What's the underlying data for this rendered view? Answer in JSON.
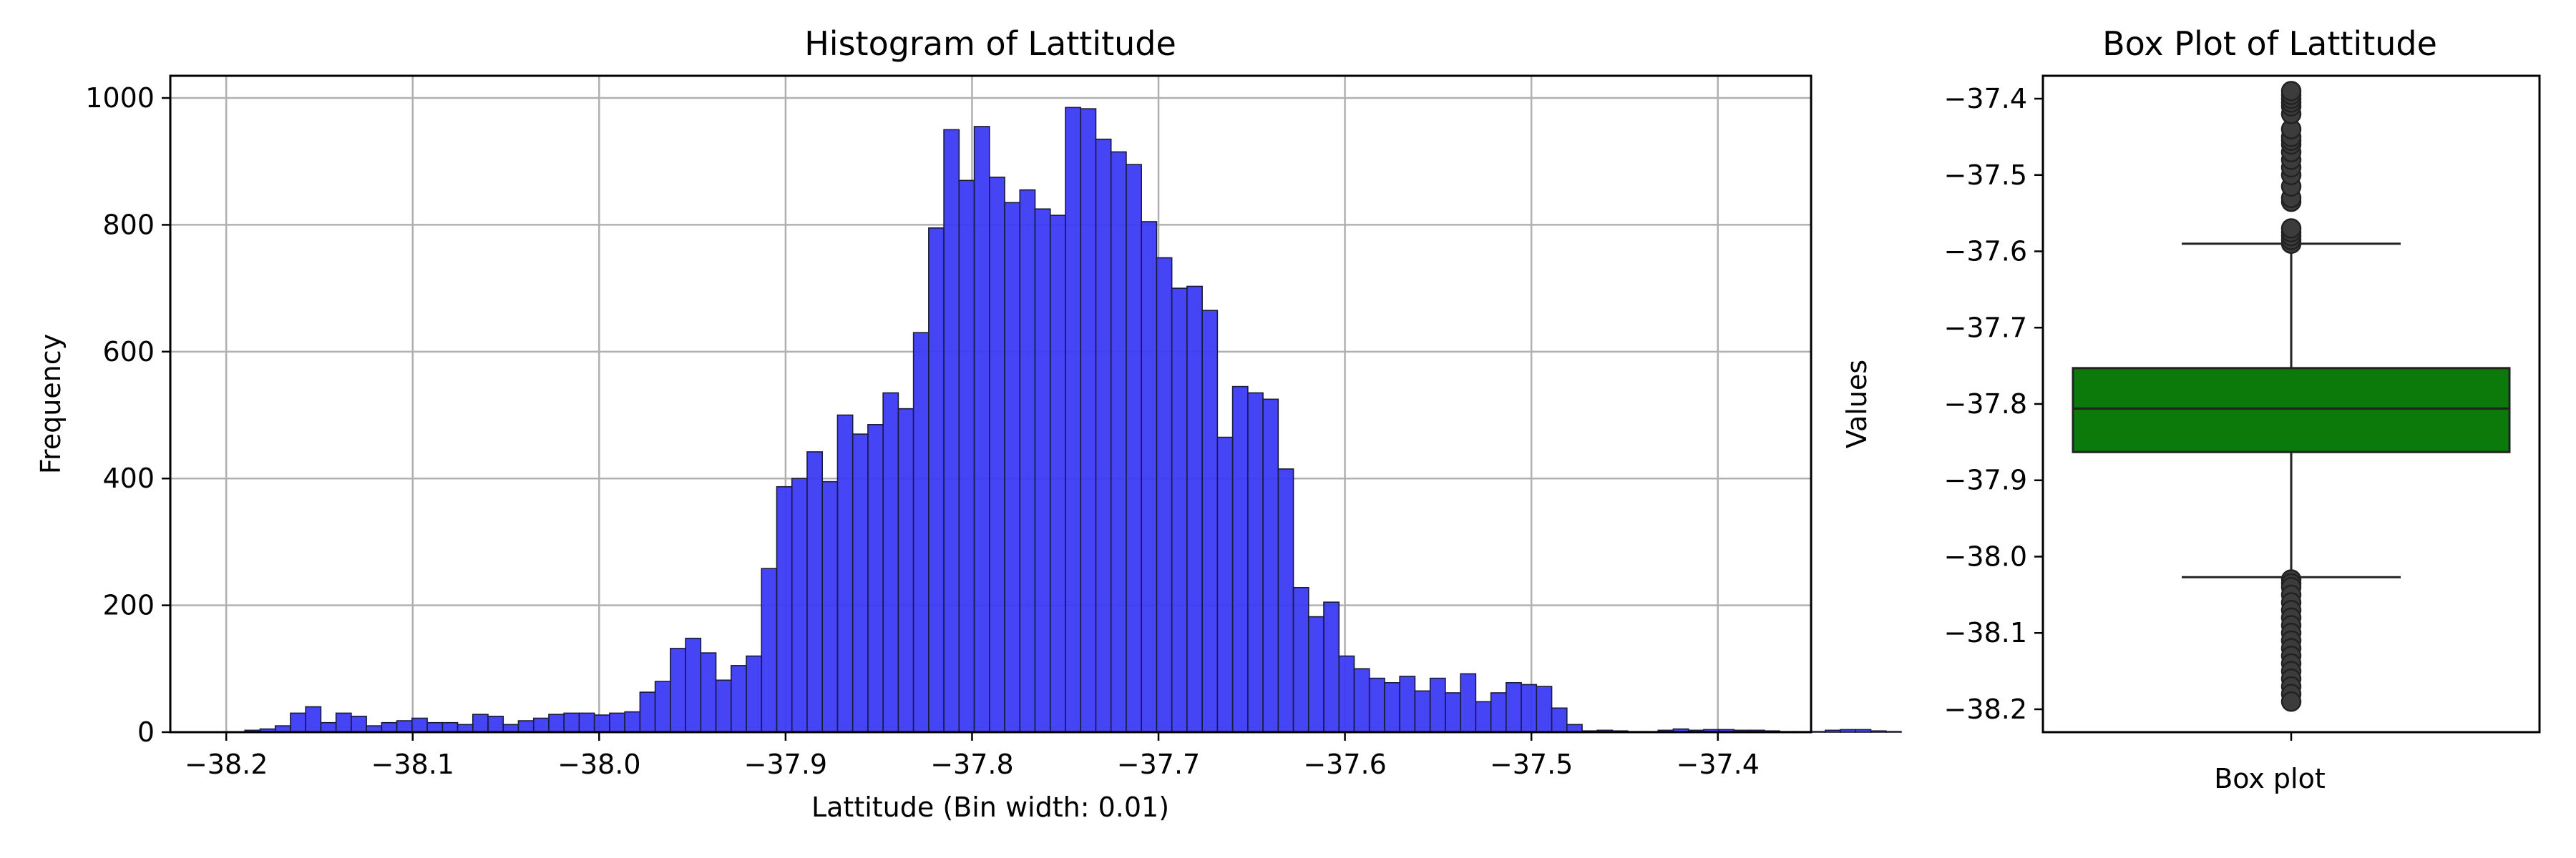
{
  "chart_data": [
    {
      "type": "bar",
      "title": "Histogram of Lattitude",
      "xlabel": "Lattitude (Bin width: 0.01)",
      "ylabel": "Frequency",
      "xlim": [
        -38.23,
        -37.35
      ],
      "ylim": [
        0,
        1035
      ],
      "grid": true,
      "bar_color": "#3b3bf6",
      "edge_color": "#1a1a3a",
      "x_ticks": [
        -38.2,
        -38.1,
        -38.0,
        -37.9,
        -37.8,
        -37.7,
        -37.6,
        -37.5,
        -37.4
      ],
      "x_tick_labels": [
        "−38.2",
        "−38.1",
        "−38.0",
        "−37.9",
        "−37.8",
        "−37.7",
        "−37.6",
        "−37.5",
        "−37.4"
      ],
      "y_ticks": [
        0,
        200,
        400,
        600,
        800,
        1000
      ],
      "y_tick_labels": [
        "0",
        "200",
        "400",
        "600",
        "800",
        "1000"
      ],
      "bin_start": -38.19,
      "bin_width": 0.00815,
      "counts": [
        3,
        5,
        10,
        30,
        40,
        15,
        30,
        25,
        10,
        15,
        18,
        22,
        15,
        15,
        12,
        28,
        25,
        12,
        18,
        22,
        28,
        30,
        30,
        27,
        30,
        32,
        63,
        80,
        132,
        148,
        125,
        82,
        105,
        120,
        258,
        387,
        400,
        442,
        395,
        500,
        470,
        485,
        535,
        510,
        630,
        795,
        950,
        870,
        955,
        875,
        835,
        855,
        825,
        815,
        985,
        983,
        935,
        915,
        895,
        805,
        748,
        700,
        703,
        665,
        465,
        545,
        535,
        525,
        415,
        228,
        182,
        205,
        120,
        100,
        85,
        78,
        88,
        65,
        85,
        62,
        92,
        48,
        62,
        78,
        75,
        72,
        38,
        12,
        2,
        3,
        2,
        1,
        1,
        3,
        5,
        3,
        4,
        4,
        3,
        3,
        2,
        1,
        1,
        1,
        3,
        4,
        4,
        2,
        1
      ]
    },
    {
      "type": "box",
      "title": "Box Plot of Lattitude",
      "xlabel": "Box plot",
      "ylabel": "Values",
      "ylim": [
        -38.23,
        -37.37
      ],
      "box_color": "#0b7a0b",
      "y_ticks": [
        -37.4,
        -37.5,
        -37.6,
        -37.7,
        -37.8,
        -37.9,
        -38.0,
        -38.1,
        -38.2
      ],
      "y_tick_labels": [
        "−37.4",
        "−37.5",
        "−37.6",
        "−37.7",
        "−37.8",
        "−37.9",
        "−38.0",
        "−38.1",
        "−38.2"
      ],
      "q1": -37.863,
      "median": -37.806,
      "q3": -37.753,
      "whisker_low": -38.027,
      "whisker_high": -37.59,
      "outliers_high": [
        -37.59,
        -37.585,
        -37.58,
        -37.575,
        -37.57,
        -37.535,
        -37.53,
        -37.515,
        -37.5,
        -37.49,
        -37.48,
        -37.47,
        -37.46,
        -37.455,
        -37.45,
        -37.44,
        -37.42,
        -37.41,
        -37.405,
        -37.4,
        -37.395,
        -37.39
      ],
      "outliers_low": [
        -38.03,
        -38.035,
        -38.04,
        -38.05,
        -38.06,
        -38.07,
        -38.08,
        -38.09,
        -38.1,
        -38.11,
        -38.12,
        -38.13,
        -38.14,
        -38.15,
        -38.16,
        -38.17,
        -38.18,
        -38.19
      ]
    }
  ]
}
